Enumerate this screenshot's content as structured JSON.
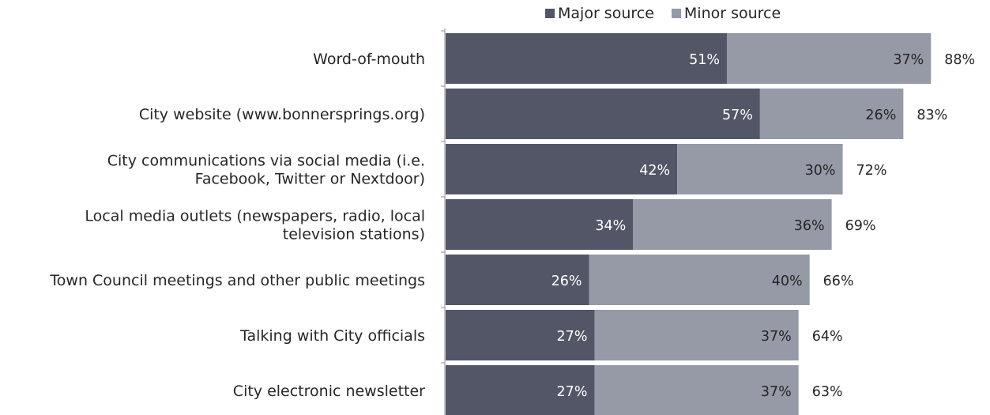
{
  "chart_data": {
    "type": "bar",
    "orientation": "horizontal",
    "stacked": true,
    "categories": [
      [
        "Word-of-mouth"
      ],
      [
        "City website (www.bonnersprings.org)"
      ],
      [
        "City communications via social media (i.e.",
        "Facebook, Twitter or Nextdoor)"
      ],
      [
        "Local media outlets (newspapers, radio, local",
        "television stations)"
      ],
      [
        "Town Council meetings and other public meetings"
      ],
      [
        "Talking with City officials"
      ],
      [
        "City electronic newsletter"
      ]
    ],
    "series": [
      {
        "name": "Major source",
        "color": "#525666",
        "values": [
          51,
          57,
          42,
          34,
          26,
          27,
          27
        ],
        "labels": [
          "51%",
          "57%",
          "42%",
          "34%",
          "26%",
          "27%",
          "27%"
        ]
      },
      {
        "name": "Minor source",
        "color": "#9699a6",
        "values": [
          37,
          26,
          30,
          36,
          40,
          37,
          37
        ],
        "labels": [
          "37%",
          "26%",
          "30%",
          "36%",
          "40%",
          "37%",
          "37%"
        ]
      }
    ],
    "totals": [
      "88%",
      "83%",
      "72%",
      "69%",
      "66%",
      "64%",
      "63%"
    ],
    "total_values": [
      88,
      83,
      72,
      69,
      66,
      64,
      63
    ],
    "xlim": [
      0,
      100
    ],
    "grid": false,
    "legend_position": "top"
  }
}
